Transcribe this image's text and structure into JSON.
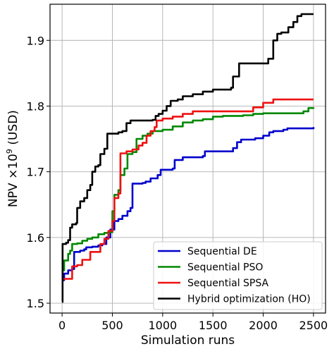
{
  "chart_data": {
    "type": "line",
    "xlabel": "Simulation runs",
    "ylabel_prefix": "NPV ×10",
    "ylabel_exp": "9",
    "ylabel_suffix": " (USD)",
    "xlim": [
      -120,
      2620
    ],
    "ylim": [
      1.485,
      1.955
    ],
    "xticks": [
      0,
      500,
      1000,
      1500,
      2000,
      2500
    ],
    "xtick_labels": [
      "0",
      "500",
      "1000",
      "1500",
      "2000",
      "2500"
    ],
    "yticks": [
      1.5,
      1.6,
      1.7,
      1.8,
      1.9
    ],
    "ytick_labels": [
      "1.5",
      "1.6",
      "1.7",
      "1.8",
      "1.9"
    ],
    "grid": true,
    "legend_position": "lower-right",
    "series": [
      {
        "name": "Sequential DE",
        "color": "#0000cc",
        "points": [
          [
            0,
            1.535
          ],
          [
            20,
            1.545
          ],
          [
            60,
            1.55
          ],
          [
            100,
            1.552
          ],
          [
            120,
            1.578
          ],
          [
            180,
            1.58
          ],
          [
            220,
            1.582
          ],
          [
            240,
            1.585
          ],
          [
            300,
            1.586
          ],
          [
            360,
            1.588
          ],
          [
            400,
            1.59
          ],
          [
            440,
            1.6
          ],
          [
            480,
            1.612
          ],
          [
            520,
            1.625
          ],
          [
            560,
            1.628
          ],
          [
            600,
            1.633
          ],
          [
            650,
            1.64
          ],
          [
            680,
            1.645
          ],
          [
            700,
            1.682
          ],
          [
            800,
            1.683
          ],
          [
            830,
            1.685
          ],
          [
            880,
            1.69
          ],
          [
            950,
            1.695
          ],
          [
            980,
            1.703
          ],
          [
            1100,
            1.705
          ],
          [
            1120,
            1.718
          ],
          [
            1200,
            1.722
          ],
          [
            1400,
            1.724
          ],
          [
            1420,
            1.731
          ],
          [
            1550,
            1.731
          ],
          [
            1700,
            1.736
          ],
          [
            1740,
            1.745
          ],
          [
            1780,
            1.749
          ],
          [
            1920,
            1.751
          ],
          [
            2000,
            1.755
          ],
          [
            2060,
            1.76
          ],
          [
            2100,
            1.762
          ],
          [
            2200,
            1.764
          ],
          [
            2240,
            1.766
          ],
          [
            2500,
            1.768
          ]
        ]
      },
      {
        "name": "Sequential PSO",
        "color": "#008800",
        "points": [
          [
            0,
            1.55
          ],
          [
            20,
            1.565
          ],
          [
            60,
            1.575
          ],
          [
            80,
            1.58
          ],
          [
            100,
            1.59
          ],
          [
            150,
            1.591
          ],
          [
            200,
            1.595
          ],
          [
            250,
            1.598
          ],
          [
            300,
            1.6
          ],
          [
            360,
            1.605
          ],
          [
            420,
            1.607
          ],
          [
            460,
            1.608
          ],
          [
            500,
            1.64
          ],
          [
            520,
            1.665
          ],
          [
            560,
            1.672
          ],
          [
            580,
            1.695
          ],
          [
            620,
            1.705
          ],
          [
            650,
            1.727
          ],
          [
            700,
            1.73
          ],
          [
            740,
            1.75
          ],
          [
            800,
            1.755
          ],
          [
            850,
            1.758
          ],
          [
            900,
            1.762
          ],
          [
            1000,
            1.764
          ],
          [
            1100,
            1.769
          ],
          [
            1200,
            1.775
          ],
          [
            1300,
            1.778
          ],
          [
            1400,
            1.78
          ],
          [
            1500,
            1.784
          ],
          [
            1600,
            1.785
          ],
          [
            1800,
            1.786
          ],
          [
            1900,
            1.788
          ],
          [
            2000,
            1.789
          ],
          [
            2400,
            1.792
          ],
          [
            2450,
            1.797
          ],
          [
            2500,
            1.798
          ]
        ]
      },
      {
        "name": "Sequential SPSA",
        "color": "#ee1111",
        "points": [
          [
            0,
            1.537
          ],
          [
            90,
            1.537
          ],
          [
            100,
            1.556
          ],
          [
            150,
            1.558
          ],
          [
            200,
            1.566
          ],
          [
            280,
            1.578
          ],
          [
            380,
            1.59
          ],
          [
            420,
            1.598
          ],
          [
            460,
            1.61
          ],
          [
            500,
            1.625
          ],
          [
            520,
            1.66
          ],
          [
            560,
            1.667
          ],
          [
            580,
            1.728
          ],
          [
            640,
            1.731
          ],
          [
            700,
            1.734
          ],
          [
            760,
            1.74
          ],
          [
            800,
            1.744
          ],
          [
            840,
            1.755
          ],
          [
            880,
            1.762
          ],
          [
            920,
            1.768
          ],
          [
            940,
            1.778
          ],
          [
            1000,
            1.781
          ],
          [
            1100,
            1.784
          ],
          [
            1200,
            1.788
          ],
          [
            1300,
            1.792
          ],
          [
            1800,
            1.792
          ],
          [
            1900,
            1.798
          ],
          [
            2000,
            1.805
          ],
          [
            2100,
            1.81
          ],
          [
            2500,
            1.81
          ]
        ]
      },
      {
        "name": "Hybrid optimization (HO)",
        "color": "#000000",
        "points": [
          [
            0,
            1.502
          ],
          [
            5,
            1.59
          ],
          [
            40,
            1.592
          ],
          [
            60,
            1.596
          ],
          [
            80,
            1.615
          ],
          [
            100,
            1.62
          ],
          [
            140,
            1.622
          ],
          [
            150,
            1.645
          ],
          [
            180,
            1.655
          ],
          [
            220,
            1.66
          ],
          [
            250,
            1.672
          ],
          [
            280,
            1.68
          ],
          [
            300,
            1.7
          ],
          [
            330,
            1.708
          ],
          [
            360,
            1.71
          ],
          [
            380,
            1.727
          ],
          [
            420,
            1.735
          ],
          [
            450,
            1.758
          ],
          [
            520,
            1.758
          ],
          [
            560,
            1.76
          ],
          [
            600,
            1.762
          ],
          [
            640,
            1.774
          ],
          [
            680,
            1.778
          ],
          [
            900,
            1.779
          ],
          [
            930,
            1.785
          ],
          [
            960,
            1.788
          ],
          [
            1000,
            1.793
          ],
          [
            1040,
            1.8
          ],
          [
            1080,
            1.808
          ],
          [
            1150,
            1.81
          ],
          [
            1200,
            1.815
          ],
          [
            1300,
            1.818
          ],
          [
            1400,
            1.822
          ],
          [
            1500,
            1.825
          ],
          [
            1680,
            1.828
          ],
          [
            1700,
            1.845
          ],
          [
            1760,
            1.865
          ],
          [
            2050,
            1.872
          ],
          [
            2100,
            1.9
          ],
          [
            2140,
            1.91
          ],
          [
            2180,
            1.912
          ],
          [
            2250,
            1.92
          ],
          [
            2300,
            1.928
          ],
          [
            2340,
            1.937
          ],
          [
            2380,
            1.94
          ],
          [
            2500,
            1.94
          ]
        ]
      }
    ]
  }
}
